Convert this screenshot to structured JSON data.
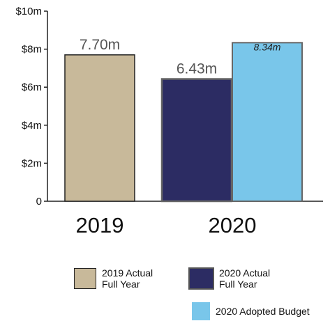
{
  "chart_data": {
    "type": "bar",
    "ylim": [
      0,
      10
    ],
    "yticks": [
      {
        "value": 0,
        "label": "0"
      },
      {
        "value": 2,
        "label": "$2m"
      },
      {
        "value": 4,
        "label": "$4m"
      },
      {
        "value": 6,
        "label": "$6m"
      },
      {
        "value": 8,
        "label": "$8m"
      },
      {
        "value": 10,
        "label": "$10m"
      }
    ],
    "categories": [
      "2019",
      "2020"
    ],
    "series": [
      {
        "name": "2019 Actual Full Year",
        "category": "2019",
        "value": 7.7,
        "label": "7.70m",
        "color": "#c8b99a"
      },
      {
        "name": "2020 Actual Full Year",
        "category": "2020",
        "value": 6.43,
        "label": "6.43m",
        "color": "#2c2c63"
      },
      {
        "name": "2020 Adopted Budget",
        "category": "2020",
        "value": 8.34,
        "label": "8.34m",
        "color": "#79c6ea"
      }
    ],
    "grid": false,
    "legend_position": "bottom"
  },
  "legend": [
    {
      "line1": "2019 Actual",
      "line2": "Full Year",
      "color": "#c8b99a",
      "border": "#222222"
    },
    {
      "line1": "2020 Actual",
      "line2": "Full Year",
      "color": "#2c2c63",
      "border": "#555555"
    },
    {
      "line1": "2020 Adopted Budget",
      "line2": "",
      "color": "#79c6ea",
      "border": "#79c6ea"
    }
  ]
}
